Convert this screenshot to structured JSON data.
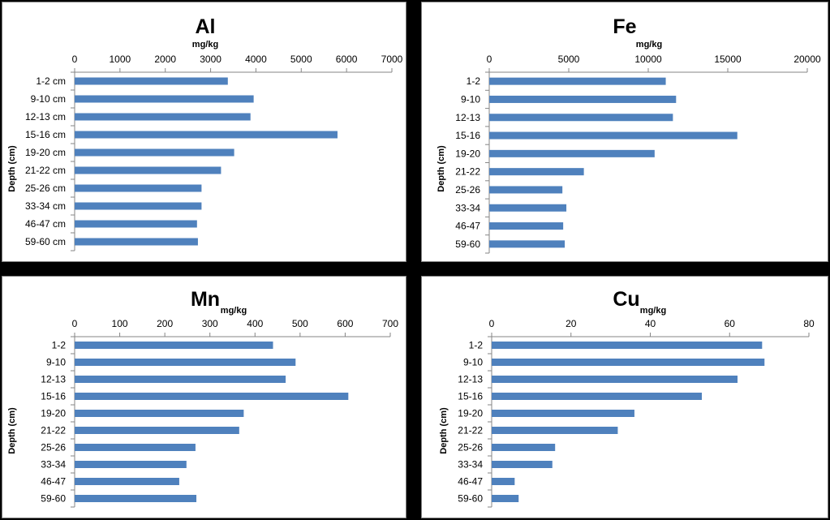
{
  "chart_data": [
    {
      "type": "bar",
      "orientation": "horizontal",
      "title": "Al",
      "unit": "mg/kg",
      "ylabel": "Depth (cm)",
      "xlim": [
        0,
        7000
      ],
      "xticks": [
        0,
        1000,
        2000,
        3000,
        4000,
        5000,
        6000,
        7000
      ],
      "x_axis_position": "top",
      "grid": false,
      "categories": [
        "1-2 cm",
        "9-10 cm",
        "12-13 cm",
        "15-16 cm",
        "19-20 cm",
        "21-22 cm",
        "25-26 cm",
        "33-34 cm",
        "46-47 cm",
        "59-60 cm"
      ],
      "values": [
        3380,
        3950,
        3880,
        5800,
        3520,
        3230,
        2800,
        2800,
        2700,
        2720
      ],
      "color": "#4f81bd"
    },
    {
      "type": "bar",
      "orientation": "horizontal",
      "title": "Fe",
      "unit": "mg/kg",
      "ylabel": "Depth (cm)",
      "xlim": [
        0,
        20000
      ],
      "xticks": [
        0,
        5000,
        10000,
        15000,
        20000
      ],
      "x_axis_position": "top",
      "grid": false,
      "categories": [
        "1-2",
        "9-10",
        "12-13",
        "15-16",
        "19-20",
        "21-22",
        "25-26",
        "33-34",
        "46-47",
        "59-60"
      ],
      "values": [
        11100,
        11750,
        11550,
        15600,
        10400,
        5950,
        4600,
        4850,
        4650,
        4750
      ],
      "color": "#4f81bd"
    },
    {
      "type": "bar",
      "orientation": "horizontal",
      "title": "Mn",
      "unit": "mg/kg",
      "ylabel": "Depth (cm)",
      "xlim": [
        0,
        700
      ],
      "xticks": [
        0,
        100,
        200,
        300,
        400,
        500,
        600,
        700
      ],
      "x_axis_position": "top",
      "grid": false,
      "categories": [
        "1-2",
        "9-10",
        "12-13",
        "15-16",
        "19-20",
        "21-22",
        "25-26",
        "33-34",
        "46-47",
        "59-60"
      ],
      "values": [
        440,
        490,
        468,
        607,
        375,
        365,
        268,
        248,
        232,
        270
      ],
      "color": "#4f81bd"
    },
    {
      "type": "bar",
      "orientation": "horizontal",
      "title": "Cu",
      "unit": "mg/kg",
      "ylabel": "Depth (cm)",
      "xlim": [
        0,
        80
      ],
      "xticks": [
        0,
        20,
        40,
        60,
        80
      ],
      "x_axis_position": "top",
      "grid": false,
      "categories": [
        "1-2",
        "9-10",
        "12-13",
        "15-16",
        "19-20",
        "21-22",
        "25-26",
        "33-34",
        "46-47",
        "59-60"
      ],
      "values": [
        68.2,
        68.8,
        62,
        53,
        36,
        31.8,
        16,
        15.3,
        5.8,
        6.8
      ],
      "color": "#4f81bd"
    }
  ]
}
